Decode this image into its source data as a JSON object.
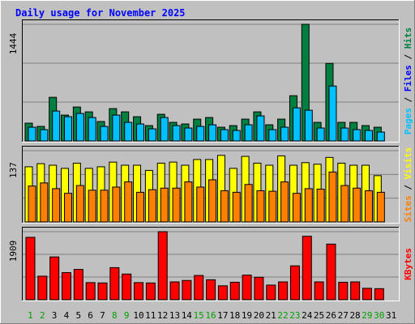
{
  "title": "Daily usage for November 2025",
  "chart_data": {
    "type": "bar",
    "title": "Daily usage for November 2025",
    "categories": [
      "1",
      "2",
      "3",
      "4",
      "5",
      "6",
      "7",
      "8",
      "9",
      "10",
      "11",
      "12",
      "13",
      "14",
      "15",
      "16",
      "17",
      "18",
      "19",
      "20",
      "21",
      "22",
      "23",
      "24",
      "25",
      "26",
      "27",
      "28",
      "29",
      "30",
      "31"
    ],
    "weekend_days": [
      "1",
      "2",
      "8",
      "9",
      "15",
      "16",
      "22",
      "23",
      "29",
      "30"
    ],
    "colors": {
      "background": "#c0c0c0",
      "plot": "#c0c0c0",
      "hits": "#008040",
      "files": "#00c0ff",
      "sites": "#ff8000",
      "visits": "#ffff00",
      "kbytes": "#ff0000",
      "title": "#0000ff",
      "weekend_label": "#00a000",
      "weekday_label": "#000000",
      "label_separator": "#000000"
    },
    "panels": [
      {
        "name": "hits-files",
        "scale_max": 1444,
        "grid": true,
        "side_label": [
          {
            "text": "Hits",
            "color": "#008040"
          },
          {
            "text": " / ",
            "color": "#000000"
          },
          {
            "text": "Files",
            "color": "#0000ff"
          },
          {
            "text": " / ",
            "color": "#000000"
          },
          {
            "text": "Pages",
            "color": "#00c0ff"
          }
        ],
        "series": [
          {
            "key": "hits",
            "color": "#008040",
            "values": [
              220,
              180,
              540,
              320,
              420,
              360,
              240,
              400,
              360,
              300,
              190,
              330,
              230,
              210,
              270,
              290,
              170,
              190,
              270,
              360,
              200,
              270,
              560,
              1444,
              230,
              960,
              230,
              230,
              190,
              170,
              0
            ]
          },
          {
            "key": "files",
            "color": "#00c0ff",
            "values": [
              170,
              140,
              370,
              300,
              340,
              290,
              180,
              320,
              230,
              210,
              150,
              290,
              190,
              160,
              180,
              200,
              140,
              130,
              200,
              310,
              140,
              170,
              410,
              380,
              160,
              680,
              160,
              140,
              130,
              110,
              0
            ]
          }
        ]
      },
      {
        "name": "visits-sites",
        "scale_max": 137,
        "grid": true,
        "side_label": [
          {
            "text": "Visits",
            "color": "#ffff00"
          },
          {
            "text": " / ",
            "color": "#000000"
          },
          {
            "text": "Sites",
            "color": "#ff8000"
          }
        ],
        "series": [
          {
            "key": "visits",
            "color": "#ffff00",
            "values": [
              106,
              112,
              109,
              103,
              113,
              103,
              106,
              115,
              109,
              109,
              99,
              113,
              115,
              109,
              120,
              120,
              128,
              103,
              126,
              113,
              109,
              127,
              109,
              114,
              111,
              124,
              113,
              109,
              109,
              89,
              0
            ]
          },
          {
            "key": "sites",
            "color": "#ff8000",
            "values": [
              69,
              75,
              64,
              55,
              70,
              61,
              61,
              67,
              77,
              57,
              62,
              65,
              65,
              77,
              67,
              81,
              60,
              57,
              72,
              60,
              59,
              77,
              55,
              64,
              63,
              96,
              70,
              65,
              60,
              57,
              0
            ]
          }
        ]
      },
      {
        "name": "kbytes",
        "scale_max": 1909,
        "grid": true,
        "side_label": [
          {
            "text": "KBytes",
            "color": "#ff0000"
          }
        ],
        "series": [
          {
            "key": "kbytes",
            "color": "#ff0000",
            "values": [
              1750,
              660,
              1200,
              760,
              850,
              480,
              470,
              900,
              720,
              480,
              470,
              1909,
              500,
              540,
              680,
              560,
              390,
              490,
              690,
              630,
              410,
              500,
              950,
              1780,
              500,
              1560,
              490,
              500,
              320,
              310,
              0
            ]
          }
        ]
      }
    ]
  }
}
